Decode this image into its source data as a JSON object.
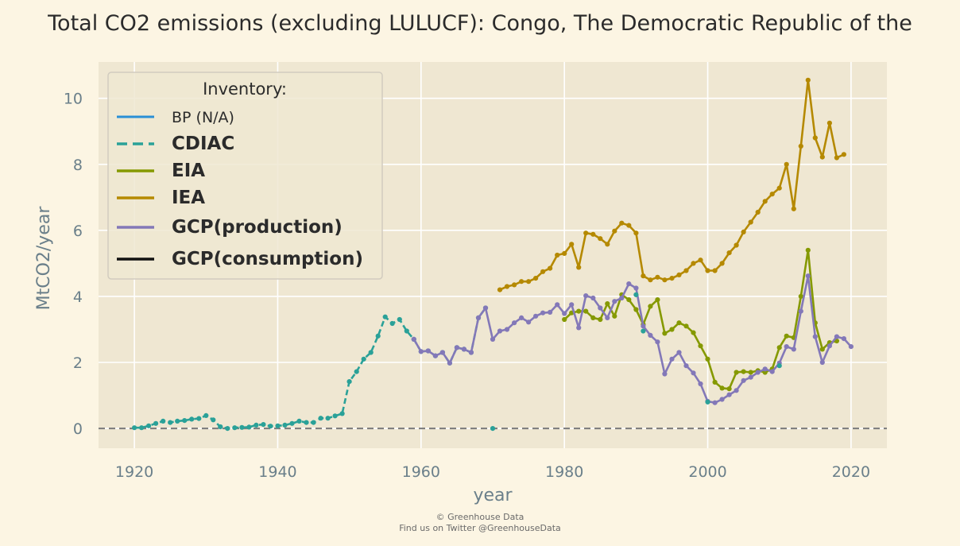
{
  "chart_data": {
    "type": "line",
    "title": "Total CO2 emissions (excluding LULUCF): Congo, The Democratic Republic of the",
    "xlabel": "year",
    "ylabel": "MtCO2/year",
    "xlim": [
      1915,
      2025
    ],
    "ylim": [
      -0.6,
      11.1
    ],
    "xticks": [
      1920,
      1940,
      1960,
      1980,
      2000,
      2020
    ],
    "yticks": [
      0,
      2,
      4,
      6,
      8,
      10
    ],
    "grid": true,
    "legend": {
      "title": "Inventory:",
      "placement": "top-left"
    },
    "colors": {
      "background": "#fcf5e3",
      "plot_area": "#efe7d2",
      "grid": "#ffffff",
      "zero_line": "#808080",
      "text": "#2b2b2b",
      "tick_text": "#6a7f8a"
    },
    "series": [
      {
        "name": "BP (N/A)",
        "color": "#2a8fd6",
        "dash": "solid",
        "bold": false,
        "markers": false,
        "points": []
      },
      {
        "name": "CDIAC",
        "color": "#2aa198",
        "dash": "dashed",
        "bold": true,
        "markers": true,
        "points": [
          [
            1920,
            0.02
          ],
          [
            1921,
            0.02
          ],
          [
            1922,
            0.08
          ],
          [
            1923,
            0.15
          ],
          [
            1924,
            0.22
          ],
          [
            1925,
            0.18
          ],
          [
            1926,
            0.22
          ],
          [
            1927,
            0.24
          ],
          [
            1928,
            0.28
          ],
          [
            1929,
            0.3
          ],
          [
            1930,
            0.39
          ],
          [
            1931,
            0.26
          ],
          [
            1932,
            0.05
          ],
          [
            1933,
            0.0
          ],
          [
            1934,
            0.02
          ],
          [
            1935,
            0.03
          ],
          [
            1936,
            0.04
          ],
          [
            1937,
            0.1
          ],
          [
            1938,
            0.12
          ],
          [
            1939,
            0.07
          ],
          [
            1940,
            0.08
          ],
          [
            1941,
            0.1
          ],
          [
            1942,
            0.15
          ],
          [
            1943,
            0.22
          ],
          [
            1944,
            0.18
          ],
          [
            1945,
            0.18
          ],
          [
            1946,
            0.31
          ],
          [
            1947,
            0.31
          ],
          [
            1948,
            0.38
          ],
          [
            1949,
            0.45
          ],
          [
            1950,
            1.42
          ],
          [
            1951,
            1.72
          ],
          [
            1952,
            2.1
          ],
          [
            1953,
            2.3
          ],
          [
            1954,
            2.8
          ],
          [
            1955,
            3.38
          ],
          [
            1956,
            3.18
          ],
          [
            1957,
            3.3
          ],
          [
            1958,
            2.95
          ],
          [
            1959,
            2.7
          ],
          [
            1960,
            2.33
          ],
          [
            1961,
            2.35
          ],
          [
            1962,
            2.2
          ],
          [
            1963,
            2.3
          ],
          [
            1964,
            1.98
          ],
          [
            1965,
            2.45
          ],
          [
            1966,
            2.4
          ],
          [
            1967,
            2.3
          ],
          [
            1968,
            3.35
          ],
          [
            1969,
            3.65
          ],
          [
            1970,
            0.0
          ]
        ]
      },
      {
        "name": "EIA",
        "color": "#859900",
        "dash": "solid",
        "bold": true,
        "markers": true,
        "points": [
          [
            1980,
            3.3
          ],
          [
            1981,
            3.5
          ],
          [
            1982,
            3.55
          ],
          [
            1983,
            3.55
          ],
          [
            1984,
            3.35
          ],
          [
            1985,
            3.3
          ],
          [
            1986,
            3.78
          ],
          [
            1987,
            3.4
          ],
          [
            1988,
            4.05
          ],
          [
            1989,
            3.9
          ],
          [
            1990,
            3.6
          ],
          [
            1991,
            3.15
          ],
          [
            1992,
            3.7
          ],
          [
            1993,
            3.9
          ],
          [
            1994,
            2.88
          ],
          [
            1995,
            3.0
          ],
          [
            1996,
            3.2
          ],
          [
            1997,
            3.1
          ],
          [
            1998,
            2.9
          ],
          [
            1999,
            2.5
          ],
          [
            2000,
            2.1
          ],
          [
            2001,
            1.4
          ],
          [
            2002,
            1.22
          ],
          [
            2003,
            1.2
          ],
          [
            2004,
            1.7
          ],
          [
            2005,
            1.72
          ],
          [
            2006,
            1.7
          ],
          [
            2007,
            1.75
          ],
          [
            2008,
            1.7
          ],
          [
            2009,
            1.8
          ],
          [
            2010,
            2.45
          ],
          [
            2011,
            2.8
          ],
          [
            2012,
            2.75
          ],
          [
            2013,
            4.0
          ],
          [
            2014,
            5.4
          ],
          [
            2015,
            3.2
          ],
          [
            2016,
            2.4
          ],
          [
            2017,
            2.6
          ],
          [
            2018,
            2.65
          ]
        ]
      },
      {
        "name": "IEA",
        "color": "#b58900",
        "dash": "solid",
        "bold": true,
        "markers": true,
        "points": [
          [
            1971,
            4.2
          ],
          [
            1972,
            4.3
          ],
          [
            1973,
            4.35
          ],
          [
            1974,
            4.45
          ],
          [
            1975,
            4.45
          ],
          [
            1976,
            4.55
          ],
          [
            1977,
            4.75
          ],
          [
            1978,
            4.85
          ],
          [
            1979,
            5.25
          ],
          [
            1980,
            5.3
          ],
          [
            1981,
            5.58
          ],
          [
            1982,
            4.88
          ],
          [
            1983,
            5.92
          ],
          [
            1984,
            5.88
          ],
          [
            1985,
            5.75
          ],
          [
            1986,
            5.58
          ],
          [
            1987,
            5.98
          ],
          [
            1988,
            6.22
          ],
          [
            1989,
            6.15
          ],
          [
            1990,
            5.92
          ],
          [
            1991,
            4.62
          ],
          [
            1992,
            4.5
          ],
          [
            1993,
            4.58
          ],
          [
            1994,
            4.5
          ],
          [
            1995,
            4.55
          ],
          [
            1996,
            4.65
          ],
          [
            1997,
            4.78
          ],
          [
            1998,
            5.0
          ],
          [
            1999,
            5.1
          ],
          [
            2000,
            4.78
          ],
          [
            2001,
            4.78
          ],
          [
            2002,
            5.0
          ],
          [
            2003,
            5.32
          ],
          [
            2004,
            5.55
          ],
          [
            2005,
            5.95
          ],
          [
            2006,
            6.25
          ],
          [
            2007,
            6.55
          ],
          [
            2008,
            6.88
          ],
          [
            2009,
            7.1
          ],
          [
            2010,
            7.28
          ],
          [
            2011,
            8.0
          ],
          [
            2012,
            6.65
          ],
          [
            2013,
            8.55
          ],
          [
            2014,
            10.55
          ],
          [
            2015,
            8.8
          ],
          [
            2016,
            8.22
          ],
          [
            2017,
            9.25
          ],
          [
            2018,
            8.2
          ],
          [
            2019,
            8.3
          ]
        ]
      },
      {
        "name": "GCP(production)",
        "color": "#8378b8",
        "dash": "solid",
        "bold": true,
        "markers": true,
        "points": [
          [
            1959,
            2.7
          ],
          [
            1960,
            2.33
          ],
          [
            1961,
            2.35
          ],
          [
            1962,
            2.2
          ],
          [
            1963,
            2.3
          ],
          [
            1964,
            1.98
          ],
          [
            1965,
            2.45
          ],
          [
            1966,
            2.4
          ],
          [
            1967,
            2.3
          ],
          [
            1968,
            3.35
          ],
          [
            1969,
            3.65
          ],
          [
            1970,
            2.7
          ],
          [
            1971,
            2.95
          ],
          [
            1972,
            3.0
          ],
          [
            1973,
            3.2
          ],
          [
            1974,
            3.35
          ],
          [
            1975,
            3.22
          ],
          [
            1976,
            3.4
          ],
          [
            1977,
            3.5
          ],
          [
            1978,
            3.52
          ],
          [
            1979,
            3.75
          ],
          [
            1980,
            3.48
          ],
          [
            1981,
            3.75
          ],
          [
            1982,
            3.05
          ],
          [
            1983,
            4.02
          ],
          [
            1984,
            3.95
          ],
          [
            1985,
            3.65
          ],
          [
            1986,
            3.35
          ],
          [
            1987,
            3.85
          ],
          [
            1988,
            3.95
          ],
          [
            1989,
            4.38
          ],
          [
            1990,
            4.25
          ],
          [
            1991,
            3.1
          ],
          [
            1992,
            2.82
          ],
          [
            1993,
            2.62
          ],
          [
            1994,
            1.65
          ],
          [
            1995,
            2.1
          ],
          [
            1996,
            2.3
          ],
          [
            1997,
            1.9
          ],
          [
            1998,
            1.68
          ],
          [
            1999,
            1.35
          ],
          [
            2000,
            0.82
          ],
          [
            2001,
            0.78
          ],
          [
            2002,
            0.88
          ],
          [
            2003,
            1.02
          ],
          [
            2004,
            1.15
          ],
          [
            2005,
            1.45
          ],
          [
            2006,
            1.55
          ],
          [
            2007,
            1.7
          ],
          [
            2008,
            1.8
          ],
          [
            2009,
            1.72
          ],
          [
            2010,
            1.98
          ],
          [
            2011,
            2.48
          ],
          [
            2012,
            2.4
          ],
          [
            2013,
            3.55
          ],
          [
            2014,
            4.62
          ],
          [
            2015,
            2.78
          ],
          [
            2016,
            2.0
          ],
          [
            2017,
            2.5
          ],
          [
            2018,
            2.78
          ],
          [
            2019,
            2.72
          ],
          [
            2020,
            2.48
          ]
        ]
      },
      {
        "name": "GCP(consumption)",
        "color": "#111111",
        "dash": "solid",
        "bold": true,
        "markers": false,
        "points": []
      }
    ],
    "extra_markers": [
      {
        "x": 1990,
        "y": 4.05,
        "color": "#2aa198"
      },
      {
        "x": 1991,
        "y": 2.95,
        "color": "#2aa198"
      },
      {
        "x": 2000,
        "y": 0.8,
        "color": "#2aa198"
      },
      {
        "x": 2010,
        "y": 1.9,
        "color": "#2aa198"
      }
    ]
  },
  "footer": {
    "line1": "© Greenhouse Data",
    "line2": "Find us on Twitter @GreenhouseData"
  }
}
